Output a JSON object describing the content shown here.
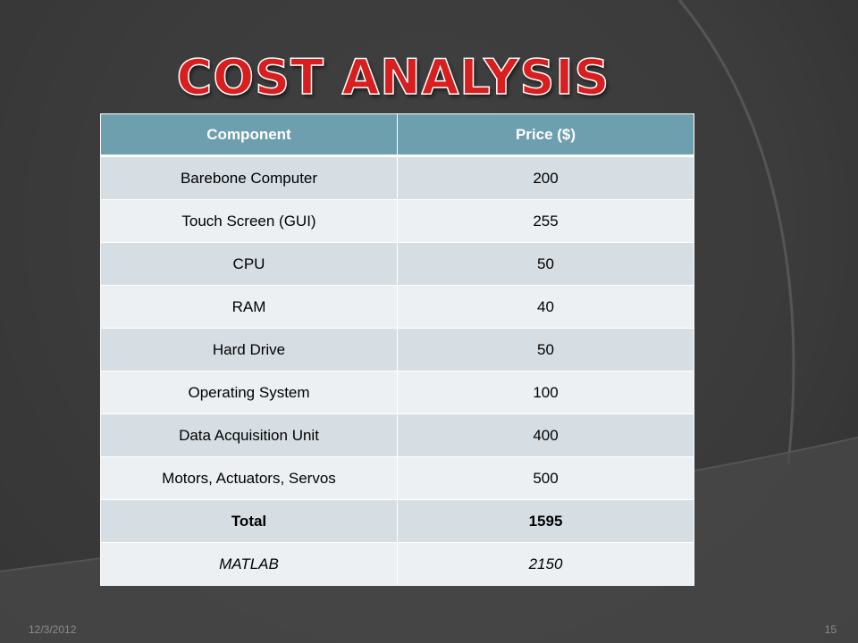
{
  "slide": {
    "title": "COST ANALYSIS",
    "date": "12/3/2012",
    "page_number": "15"
  },
  "table": {
    "headers": [
      "Component",
      "Price ($)"
    ],
    "rows": [
      {
        "component": "Barebone Computer",
        "price": "200"
      },
      {
        "component": "Touch Screen (GUI)",
        "price": "255"
      },
      {
        "component": "CPU",
        "price": "50"
      },
      {
        "component": "RAM",
        "price": "40"
      },
      {
        "component": "Hard Drive",
        "price": "50"
      },
      {
        "component": "Operating System",
        "price": "100"
      },
      {
        "component": "Data Acquisition Unit",
        "price": "400"
      },
      {
        "component": "Motors, Actuators, Servos",
        "price": "500"
      }
    ],
    "total": {
      "label": "Total",
      "price": "1595"
    },
    "extra": {
      "label": "MATLAB",
      "price": "2150"
    }
  },
  "colors": {
    "title": "#d81e1e",
    "header_bg": "#6e9fae",
    "row_dark": "#d7dee3",
    "row_light": "#edf0f3",
    "background": "#3d3d3d"
  }
}
